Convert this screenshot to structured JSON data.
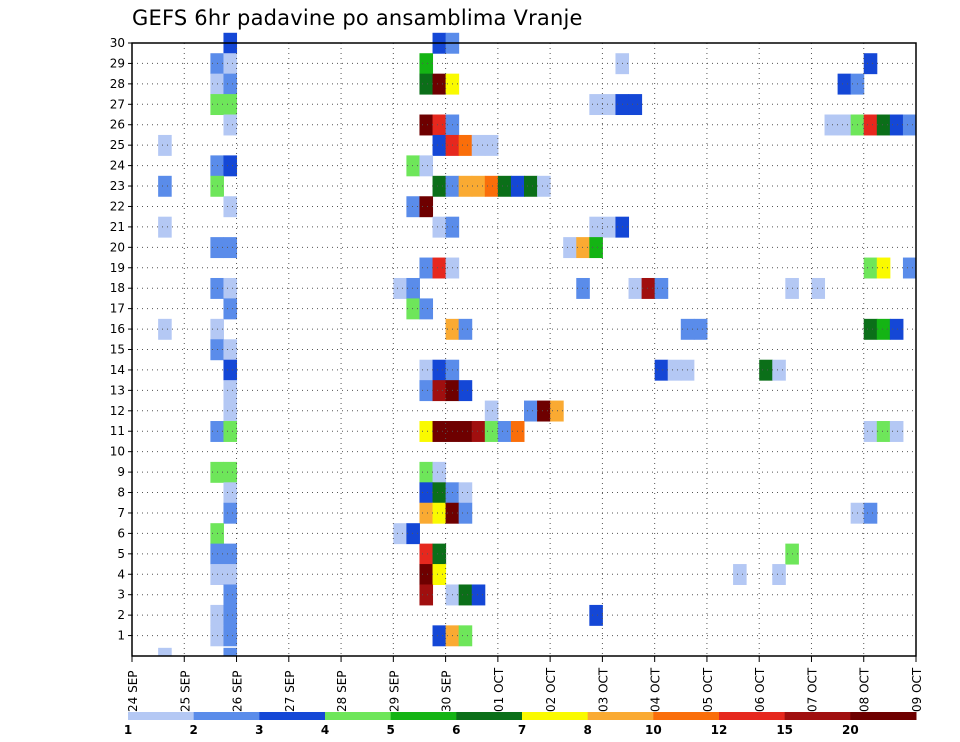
{
  "chart_data": {
    "type": "heatmap",
    "title": "GEFS 6hr padavine po ansamblima Vranje",
    "x_tick_labels": [
      "24 SEP",
      "25 SEP",
      "26 SEP",
      "27 SEP",
      "28 SEP",
      "29 SEP",
      "30 SEP",
      "01 OCT",
      "02 OCT",
      "03 OCT",
      "04 OCT",
      "05 OCT",
      "06 OCT",
      "07 OCT",
      "08 OCT",
      "09 OCT"
    ],
    "y_members": [
      1,
      2,
      3,
      4,
      5,
      6,
      7,
      8,
      9,
      10,
      11,
      12,
      13,
      14,
      15,
      16,
      17,
      18,
      19,
      20,
      21,
      22,
      23,
      24,
      25,
      26,
      27,
      28,
      29,
      30
    ],
    "x_range_steps": [
      0,
      60
    ],
    "steps_per_day": 4,
    "grid": true,
    "colorbar": {
      "labels": [
        "1",
        "2",
        "3",
        "4",
        "5",
        "6",
        "7",
        "8",
        "10",
        "12",
        "15",
        "20"
      ],
      "colors": [
        "#b4c8f4",
        "#5a8cea",
        "#1447d6",
        "#6ee65a",
        "#14b414",
        "#0b6f19",
        "#fafa00",
        "#faaa32",
        "#fa6e0a",
        "#e6281e",
        "#a00f0f",
        "#6e0000"
      ]
    },
    "cells": [
      [
        24,
        1,
        30
      ],
      [
        26,
        1,
        28
      ],
      [
        26,
        0,
        26
      ],
      [
        26,
        0,
        23
      ],
      [
        6,
        1,
        24
      ],
      [
        6,
        1,
        20
      ],
      [
        6,
        1,
        16
      ],
      [
        6,
        0,
        15
      ],
      [
        15,
        1,
        14
      ],
      [
        15,
        1,
        13
      ],
      [
        30,
        2,
        5
      ],
      [
        30,
        2,
        4
      ],
      [
        1,
        1,
        26
      ],
      [
        1,
        0,
        25
      ],
      [
        5,
        0,
        27
      ],
      [
        1,
        4,
        26
      ],
      [
        2,
        4,
        27
      ],
      [
        2,
        3,
        28
      ],
      [
        3,
        5,
        28
      ],
      [
        1,
        11,
        29
      ],
      [
        6,
        7,
        30
      ],
      [
        8,
        11,
        30
      ],
      [
        5,
        7,
        31
      ],
      [
        2,
        1,
        35
      ],
      [
        1,
        1,
        36
      ],
      [
        1,
        2,
        45
      ],
      [
        1,
        2,
        54
      ],
      [
        3,
        1,
        21
      ],
      [
        2,
        2,
        22
      ],
      [
        4,
        4,
        23
      ],
      [
        1,
        8,
        24
      ],
      [
        1,
        3,
        31
      ],
      [
        1,
        3,
        32
      ],
      [
        1,
        2,
        52
      ],
      [
        1,
        2,
        51
      ],
      [
        2,
        2,
        56
      ],
      [
        1,
        1,
        56
      ],
      [
        1,
        5,
        57
      ],
      [
        1,
        0,
        58
      ],
      [
        1,
        1,
        59
      ],
      [
        1,
        1,
        6
      ],
      [
        1,
        0,
        7
      ],
      [
        2,
        3,
        22
      ],
      [
        2,
        3,
        23
      ],
      [
        1,
        0,
        24
      ],
      [
        1,
        6,
        25
      ],
      [
        2,
        1,
        50
      ],
      [
        2,
        1,
        51
      ],
      [
        1,
        2,
        59
      ],
      [
        3,
        4,
        25
      ],
      [
        5,
        3,
        59
      ],
      [
        2,
        2,
        20
      ],
      [
        2,
        2,
        21
      ],
      [
        1,
        9,
        26
      ],
      [
        1,
        5,
        25
      ],
      [
        3,
        7,
        26
      ],
      [
        2,
        1,
        27
      ],
      [
        4,
        0,
        52
      ],
      [
        4,
        0,
        53
      ],
      [
        2,
        3,
        32
      ],
      [
        3,
        0,
        33
      ],
      [
        4,
        1,
        58
      ],
      [
        0,
        6,
        22
      ],
      [
        1,
        0,
        23
      ],
      [
        3,
        3,
        23
      ],
      [
        4,
        2,
        22
      ],
      [
        1,
        2,
        21
      ],
      [
        1,
        1,
        20
      ],
      [
        1,
        4,
        29
      ],
      [
        1,
        9,
        30
      ],
      [
        1,
        9,
        31
      ],
      [
        1,
        7,
        32
      ],
      [
        1,
        4,
        33
      ],
      [
        1,
        4,
        34
      ],
      [
        1,
        3,
        35
      ],
      [
        1,
        11,
        36
      ],
      [
        1,
        5,
        37
      ],
      [
        1,
        0,
        38
      ],
      [
        1,
        1,
        56
      ],
      [
        2,
        0,
        22
      ],
      [
        3,
        2,
        22
      ],
      [
        1,
        3,
        21
      ],
      [
        1,
        4,
        21
      ],
      [
        2,
        1,
        23
      ],
      [
        1,
        11,
        23
      ],
      [
        1,
        0,
        25
      ],
      [
        2,
        1,
        20
      ],
      [
        1,
        0,
        21
      ],
      [
        1,
        3,
        22
      ],
      [
        1,
        9,
        24
      ],
      [
        1,
        0,
        25
      ],
      [
        1,
        2,
        40
      ],
      [
        1,
        0,
        40
      ],
      [
        1,
        2,
        41
      ],
      [
        1,
        2,
        42
      ],
      [
        1,
        10,
        24
      ],
      [
        1,
        10,
        23
      ],
      [
        1,
        6,
        25
      ],
      [
        1,
        1,
        6
      ],
      [
        1,
        1,
        7
      ],
      [
        1,
        0,
        22
      ],
      [
        1,
        0,
        21
      ],
      [
        1,
        2,
        22
      ],
      [
        1,
        2,
        22
      ],
      [
        1,
        1,
        7
      ],
      [
        1,
        0,
        22
      ],
      [
        1,
        1,
        23
      ],
      [
        1,
        1,
        23
      ],
      [
        1,
        1,
        34
      ],
      [
        1,
        0,
        37
      ],
      [
        1,
        6,
        21
      ],
      [
        1,
        0,
        21
      ],
      [
        3,
        0,
        36
      ],
      [
        4,
        1,
        40
      ],
      [
        4,
        1,
        41
      ],
      [
        1,
        0,
        41
      ],
      [
        1,
        2,
        21
      ],
      [
        1,
        0,
        36
      ],
      [
        1,
        0,
        37
      ],
      [
        1,
        1,
        34
      ],
      [
        1,
        5,
        35
      ]
    ]
  }
}
